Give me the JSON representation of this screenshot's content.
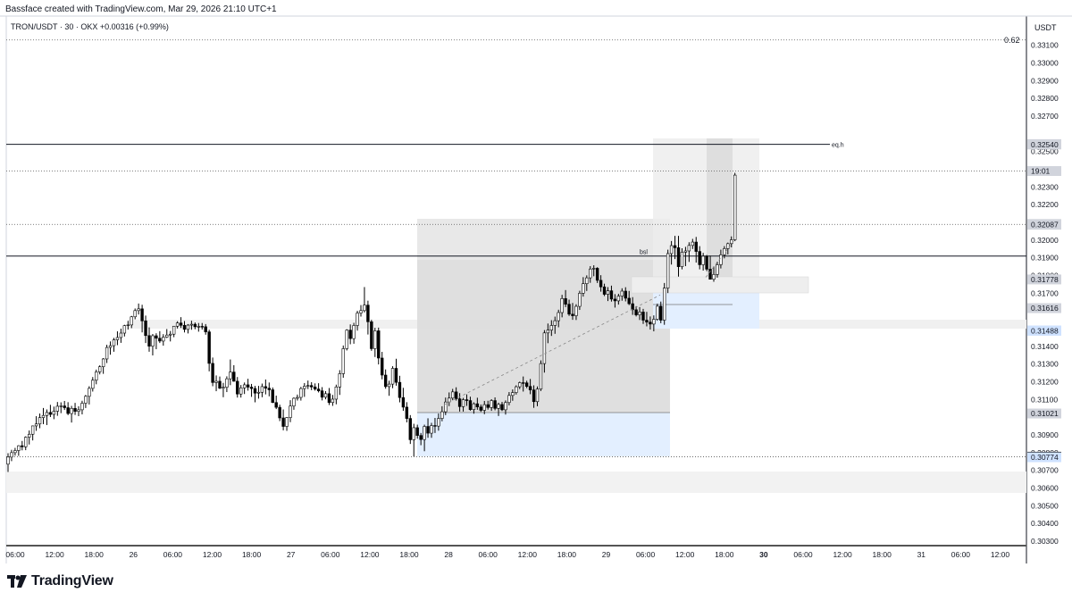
{
  "header": "Bassface created with TradingView.com, Mar 29, 2026 21:10 UTC+1",
  "symbol_line": "TRON/USDT · 30 · OKX  +0.00316 (+0.99%)",
  "currency": "USDT",
  "brand": "TradingView",
  "colors": {
    "up_body": "#ffffff",
    "down_body": "#000000",
    "wick": "#000000",
    "zone_gray": "#e6e6e6",
    "zone_blue": "#e3efff",
    "label_gray": "#d1d4dc",
    "label_black": "#000000",
    "label_blue": "#cfe2ff"
  },
  "chart_data": {
    "type": "candlestick",
    "ylim": [
      0.30275,
      0.33265
    ],
    "y_ticks": [
      "0.33100",
      "0.33000",
      "0.32900",
      "0.32800",
      "0.32700",
      "0.32500",
      "0.32400",
      "0.32300",
      "0.32200",
      "0.32000",
      "0.31900",
      "0.31800",
      "0.31700",
      "0.31400",
      "0.31300",
      "0.31200",
      "0.31100",
      "0.30900",
      "0.30800",
      "0.30700",
      "0.30600",
      "0.30500",
      "0.30400",
      "0.30300"
    ],
    "x_ticks": [
      "06:00",
      "12:00",
      "18:00",
      "26",
      "06:00",
      "12:00",
      "18:00",
      "27",
      "06:00",
      "12:00",
      "18:00",
      "28",
      "06:00",
      "12:00",
      "18:00",
      "29",
      "06:00",
      "12:00",
      "18:00",
      "30",
      "06:00",
      "12:00",
      "18:00",
      "31",
      "06:00",
      "12:00"
    ],
    "x_bold_ticks": [
      "30"
    ],
    "price_labels": [
      {
        "value": 0.32542,
        "text": "0.32542",
        "style": "gray"
      },
      {
        "value": 0.3254,
        "text": "0.32540",
        "style": "gray"
      },
      {
        "value": 0.3239,
        "text": "19:01",
        "style": "gray"
      },
      {
        "value": 0.32091,
        "text": "0.32091",
        "style": "gray"
      },
      {
        "value": 0.32087,
        "text": "0.32087",
        "style": "gray"
      },
      {
        "value": 0.31778,
        "text": "0.31778",
        "style": "gray"
      },
      {
        "value": 0.31616,
        "text": "0.31616",
        "style": "gray"
      },
      {
        "value": 0.3149,
        "text": "0.31490",
        "style": "blue"
      },
      {
        "value": 0.31488,
        "text": "0.31488",
        "style": "blue"
      },
      {
        "value": 0.31021,
        "text": "0.31021",
        "style": "gray"
      },
      {
        "value": 0.30777,
        "text": "0.30777",
        "style": "black"
      },
      {
        "value": 0.30774,
        "text": "0.30774",
        "style": "blue"
      }
    ],
    "fib_label": "0.62",
    "line_labels": [
      "eq.h",
      "bsl"
    ],
    "candles": [
      [
        0.30735,
        0.30797,
        0.30691,
        0.30775
      ],
      [
        0.30775,
        0.30816,
        0.30752,
        0.308
      ],
      [
        0.308,
        0.30827,
        0.30783,
        0.30812
      ],
      [
        0.30812,
        0.30842,
        0.30782,
        0.30839
      ],
      [
        0.30839,
        0.30866,
        0.30813,
        0.30833
      ],
      [
        0.30833,
        0.30892,
        0.30814,
        0.30887
      ],
      [
        0.30887,
        0.30925,
        0.30846,
        0.30904
      ],
      [
        0.30904,
        0.30953,
        0.30869,
        0.30951
      ],
      [
        0.30951,
        0.31006,
        0.30923,
        0.30962
      ],
      [
        0.30962,
        0.31021,
        0.30938,
        0.30998
      ],
      [
        0.30998,
        0.31052,
        0.30961,
        0.3101
      ],
      [
        0.3101,
        0.31044,
        0.30956,
        0.31027
      ],
      [
        0.31027,
        0.3107,
        0.31001,
        0.31016
      ],
      [
        0.31016,
        0.3106,
        0.30989,
        0.31034
      ],
      [
        0.31034,
        0.31086,
        0.31008,
        0.31062
      ],
      [
        0.31062,
        0.31084,
        0.31023,
        0.31064
      ],
      [
        0.31064,
        0.31092,
        0.31041,
        0.31054
      ],
      [
        0.31054,
        0.31085,
        0.31012,
        0.31021
      ],
      [
        0.31021,
        0.31064,
        0.3097,
        0.3105
      ],
      [
        0.3105,
        0.31081,
        0.31013,
        0.31033
      ],
      [
        0.31033,
        0.31062,
        0.31006,
        0.31042
      ],
      [
        0.31042,
        0.31093,
        0.31016,
        0.31079
      ],
      [
        0.31079,
        0.31126,
        0.31052,
        0.31118
      ],
      [
        0.31118,
        0.31175,
        0.31072,
        0.31163
      ],
      [
        0.31163,
        0.31227,
        0.31145,
        0.31209
      ],
      [
        0.31209,
        0.31269,
        0.31186,
        0.31256
      ],
      [
        0.31256,
        0.31293,
        0.31242,
        0.31285
      ],
      [
        0.31285,
        0.31334,
        0.31245,
        0.31329
      ],
      [
        0.31329,
        0.31409,
        0.31306,
        0.31394
      ],
      [
        0.31394,
        0.31428,
        0.31353,
        0.31404
      ],
      [
        0.31404,
        0.31448,
        0.3137,
        0.31437
      ],
      [
        0.31437,
        0.31485,
        0.31407,
        0.3145
      ],
      [
        0.3145,
        0.315,
        0.3142,
        0.31475
      ],
      [
        0.31475,
        0.31522,
        0.31456,
        0.31517
      ],
      [
        0.31517,
        0.31544,
        0.31495,
        0.31521
      ],
      [
        0.31521,
        0.31572,
        0.31503,
        0.31567
      ],
      [
        0.31567,
        0.31614,
        0.31553,
        0.31602
      ],
      [
        0.31602,
        0.31642,
        0.3158,
        0.31612
      ],
      [
        0.31612,
        0.31635,
        0.31479,
        0.31544
      ],
      [
        0.31544,
        0.31574,
        0.31419,
        0.31461
      ],
      [
        0.31461,
        0.31507,
        0.3137,
        0.31401
      ],
      [
        0.31401,
        0.3147,
        0.31349,
        0.3146
      ],
      [
        0.3146,
        0.31474,
        0.31384,
        0.31446
      ],
      [
        0.31446,
        0.31486,
        0.31419,
        0.3143
      ],
      [
        0.3143,
        0.31469,
        0.31404,
        0.31452
      ],
      [
        0.31452,
        0.31498,
        0.31447,
        0.31464
      ],
      [
        0.31464,
        0.31487,
        0.31428,
        0.31469
      ],
      [
        0.31469,
        0.31515,
        0.31452,
        0.31514
      ],
      [
        0.31514,
        0.31542,
        0.31501,
        0.31532
      ],
      [
        0.31532,
        0.31565,
        0.31504,
        0.31519
      ],
      [
        0.31519,
        0.31543,
        0.31479,
        0.31496
      ],
      [
        0.31496,
        0.31526,
        0.31473,
        0.3152
      ],
      [
        0.3152,
        0.31545,
        0.31494,
        0.31525
      ],
      [
        0.31525,
        0.31535,
        0.31497,
        0.31511
      ],
      [
        0.31511,
        0.31532,
        0.31483,
        0.31513
      ],
      [
        0.31513,
        0.31532,
        0.31495,
        0.31511
      ],
      [
        0.31511,
        0.31526,
        0.31466,
        0.31482
      ],
      [
        0.31482,
        0.31494,
        0.31259,
        0.31304
      ],
      [
        0.31304,
        0.31337,
        0.31175,
        0.31196
      ],
      [
        0.31196,
        0.31236,
        0.31147,
        0.31203
      ],
      [
        0.31203,
        0.3123,
        0.31159,
        0.31164
      ],
      [
        0.31164,
        0.31194,
        0.31113,
        0.31169
      ],
      [
        0.31169,
        0.31231,
        0.31142,
        0.31217
      ],
      [
        0.31217,
        0.31326,
        0.31181,
        0.31255
      ],
      [
        0.31255,
        0.31294,
        0.31201,
        0.31203
      ],
      [
        0.31203,
        0.31227,
        0.31111,
        0.31131
      ],
      [
        0.31131,
        0.31182,
        0.31111,
        0.31166
      ],
      [
        0.31166,
        0.31196,
        0.31131,
        0.31183
      ],
      [
        0.31183,
        0.31217,
        0.3115,
        0.3117
      ],
      [
        0.3117,
        0.31188,
        0.31115,
        0.31162
      ],
      [
        0.31162,
        0.31177,
        0.31084,
        0.31136
      ],
      [
        0.31136,
        0.31177,
        0.31105,
        0.31141
      ],
      [
        0.31141,
        0.3119,
        0.31113,
        0.31173
      ],
      [
        0.31173,
        0.31213,
        0.31129,
        0.31164
      ],
      [
        0.31164,
        0.31196,
        0.31118,
        0.31155
      ],
      [
        0.31155,
        0.31168,
        0.3108,
        0.31083
      ],
      [
        0.31083,
        0.31122,
        0.31046,
        0.31056
      ],
      [
        0.31056,
        0.31071,
        0.30978,
        0.30996
      ],
      [
        0.30996,
        0.31044,
        0.30926,
        0.30948
      ],
      [
        0.30948,
        0.31001,
        0.30923,
        0.30998
      ],
      [
        0.30998,
        0.31096,
        0.30972,
        0.31063
      ],
      [
        0.31063,
        0.31112,
        0.31042,
        0.31107
      ],
      [
        0.31107,
        0.31128,
        0.31094,
        0.31112
      ],
      [
        0.31112,
        0.31171,
        0.31094,
        0.31162
      ],
      [
        0.31162,
        0.31193,
        0.31115,
        0.31175
      ],
      [
        0.31175,
        0.31207,
        0.31159,
        0.31179
      ],
      [
        0.31179,
        0.31198,
        0.31153,
        0.31171
      ],
      [
        0.31171,
        0.31191,
        0.3115,
        0.31159
      ],
      [
        0.31159,
        0.31192,
        0.3114,
        0.31149
      ],
      [
        0.31149,
        0.3117,
        0.31095,
        0.31113
      ],
      [
        0.31113,
        0.31147,
        0.31101,
        0.31133
      ],
      [
        0.31133,
        0.31165,
        0.31069,
        0.31083
      ],
      [
        0.31083,
        0.31126,
        0.31064,
        0.31102
      ],
      [
        0.31102,
        0.31184,
        0.31073,
        0.31171
      ],
      [
        0.31171,
        0.31266,
        0.31126,
        0.31246
      ],
      [
        0.31246,
        0.31405,
        0.31223,
        0.31387
      ],
      [
        0.31387,
        0.31497,
        0.31377,
        0.31492
      ],
      [
        0.31492,
        0.31524,
        0.31412,
        0.31444
      ],
      [
        0.31444,
        0.31533,
        0.31415,
        0.31518
      ],
      [
        0.31518,
        0.31601,
        0.31489,
        0.31588
      ],
      [
        0.31588,
        0.31633,
        0.31568,
        0.31602
      ],
      [
        0.31602,
        0.31735,
        0.31592,
        0.31633
      ],
      [
        0.31633,
        0.31658,
        0.31467,
        0.31539
      ],
      [
        0.31539,
        0.3155,
        0.31375,
        0.31387
      ],
      [
        0.31387,
        0.31505,
        0.3134,
        0.31488
      ],
      [
        0.31488,
        0.31506,
        0.31298,
        0.31334
      ],
      [
        0.31334,
        0.31369,
        0.31214,
        0.31238
      ],
      [
        0.31238,
        0.3127,
        0.31161,
        0.31173
      ],
      [
        0.31173,
        0.31206,
        0.31121,
        0.31187
      ],
      [
        0.31187,
        0.31288,
        0.31164,
        0.31276
      ],
      [
        0.31276,
        0.3133,
        0.31178,
        0.31197
      ],
      [
        0.31197,
        0.31234,
        0.31084,
        0.31111
      ],
      [
        0.31111,
        0.31166,
        0.31036,
        0.31057
      ],
      [
        0.31057,
        0.31085,
        0.30971,
        0.30993
      ],
      [
        0.30993,
        0.31012,
        0.30849,
        0.30873
      ],
      [
        0.30873,
        0.30963,
        0.30779,
        0.30941
      ],
      [
        0.30941,
        0.30958,
        0.30879,
        0.30897
      ],
      [
        0.30897,
        0.30911,
        0.30842,
        0.30874
      ],
      [
        0.30874,
        0.30958,
        0.30808,
        0.30948
      ],
      [
        0.30948,
        0.30994,
        0.30884,
        0.3091
      ],
      [
        0.3091,
        0.30968,
        0.30884,
        0.30953
      ],
      [
        0.30953,
        0.30996,
        0.30911,
        0.3095
      ],
      [
        0.3095,
        0.31021,
        0.30924,
        0.30993
      ],
      [
        0.30993,
        0.31062,
        0.30977,
        0.31031
      ],
      [
        0.31031,
        0.31111,
        0.31012,
        0.31086
      ],
      [
        0.31086,
        0.3114,
        0.31063,
        0.31108
      ],
      [
        0.31108,
        0.3116,
        0.31096,
        0.31143
      ],
      [
        0.31143,
        0.31169,
        0.31094,
        0.31104
      ],
      [
        0.31104,
        0.31136,
        0.31032,
        0.3106
      ],
      [
        0.3106,
        0.31109,
        0.31032,
        0.31099
      ],
      [
        0.31099,
        0.31129,
        0.31064,
        0.31094
      ],
      [
        0.31094,
        0.31116,
        0.31037,
        0.31043
      ],
      [
        0.31043,
        0.31084,
        0.3102,
        0.31076
      ],
      [
        0.31076,
        0.3111,
        0.31042,
        0.31058
      ],
      [
        0.31058,
        0.31072,
        0.3103,
        0.31039
      ],
      [
        0.31039,
        0.31092,
        0.31017,
        0.31071
      ],
      [
        0.31071,
        0.31093,
        0.31043,
        0.31055
      ],
      [
        0.31055,
        0.31102,
        0.31036,
        0.31094
      ],
      [
        0.31094,
        0.31112,
        0.31039,
        0.3105
      ],
      [
        0.3105,
        0.31082,
        0.31007,
        0.31072
      ],
      [
        0.31072,
        0.31087,
        0.31035,
        0.31042
      ],
      [
        0.31042,
        0.31095,
        0.31015,
        0.31083
      ],
      [
        0.31083,
        0.31142,
        0.31067,
        0.31123
      ],
      [
        0.31123,
        0.31157,
        0.31093,
        0.31139
      ],
      [
        0.31139,
        0.3118,
        0.31128,
        0.31172
      ],
      [
        0.31172,
        0.31201,
        0.31159,
        0.31195
      ],
      [
        0.31195,
        0.3123,
        0.31145,
        0.31194
      ],
      [
        0.31194,
        0.31206,
        0.31164,
        0.31174
      ],
      [
        0.31174,
        0.31216,
        0.3113,
        0.31154
      ],
      [
        0.31154,
        0.3118,
        0.31053,
        0.31088
      ],
      [
        0.31088,
        0.31174,
        0.31062,
        0.31159
      ],
      [
        0.31159,
        0.31321,
        0.31148,
        0.31303
      ],
      [
        0.31303,
        0.31492,
        0.31252,
        0.31476
      ],
      [
        0.31476,
        0.31529,
        0.31418,
        0.31492
      ],
      [
        0.31492,
        0.31548,
        0.31459,
        0.31518
      ],
      [
        0.31518,
        0.31568,
        0.31471,
        0.31545
      ],
      [
        0.31545,
        0.31607,
        0.31508,
        0.31591
      ],
      [
        0.31591,
        0.31691,
        0.31564,
        0.3167
      ],
      [
        0.3167,
        0.31718,
        0.31622,
        0.31638
      ],
      [
        0.31638,
        0.31664,
        0.31572,
        0.31582
      ],
      [
        0.31582,
        0.31645,
        0.3155,
        0.31573
      ],
      [
        0.31573,
        0.31638,
        0.31549,
        0.31626
      ],
      [
        0.31626,
        0.31714,
        0.31606,
        0.317
      ],
      [
        0.317,
        0.31791,
        0.31681,
        0.31754
      ],
      [
        0.31754,
        0.31801,
        0.31713,
        0.31787
      ],
      [
        0.31787,
        0.31853,
        0.31759,
        0.31837
      ],
      [
        0.31837,
        0.31858,
        0.31796,
        0.31841
      ],
      [
        0.31841,
        0.31847,
        0.31758,
        0.31773
      ],
      [
        0.31773,
        0.31802,
        0.31709,
        0.31736
      ],
      [
        0.31736,
        0.31754,
        0.31684,
        0.31694
      ],
      [
        0.31694,
        0.31735,
        0.31656,
        0.31714
      ],
      [
        0.31714,
        0.31743,
        0.31653,
        0.31667
      ],
      [
        0.31667,
        0.31695,
        0.31619,
        0.31657
      ],
      [
        0.31657,
        0.31697,
        0.31636,
        0.31684
      ],
      [
        0.31684,
        0.31728,
        0.31658,
        0.31712
      ],
      [
        0.31712,
        0.31734,
        0.31654,
        0.31672
      ],
      [
        0.31672,
        0.31713,
        0.31633,
        0.31641
      ],
      [
        0.31641,
        0.31678,
        0.31578,
        0.31607
      ],
      [
        0.31607,
        0.31627,
        0.31569,
        0.31578
      ],
      [
        0.31578,
        0.31622,
        0.31549,
        0.31594
      ],
      [
        0.31594,
        0.31612,
        0.31527,
        0.31548
      ],
      [
        0.31548,
        0.31595,
        0.31513,
        0.31537
      ],
      [
        0.31537,
        0.31569,
        0.31495,
        0.31526
      ],
      [
        0.31526,
        0.31575,
        0.31485,
        0.31553
      ],
      [
        0.31553,
        0.31641,
        0.31545,
        0.31627
      ],
      [
        0.31627,
        0.31653,
        0.31531,
        0.31548
      ],
      [
        0.31548,
        0.31758,
        0.31522,
        0.31729
      ],
      [
        0.31729,
        0.31946,
        0.31701,
        0.31924
      ],
      [
        0.31924,
        0.31995,
        0.31862,
        0.31969
      ],
      [
        0.31969,
        0.32024,
        0.31893,
        0.31957
      ],
      [
        0.31957,
        0.32024,
        0.31794,
        0.3185
      ],
      [
        0.3185,
        0.31954,
        0.31835,
        0.31932
      ],
      [
        0.31932,
        0.31962,
        0.31853,
        0.31939
      ],
      [
        0.31939,
        0.31988,
        0.31877,
        0.3197
      ],
      [
        0.3197,
        0.32007,
        0.3195,
        0.31989
      ],
      [
        0.31989,
        0.32018,
        0.31873,
        0.31936
      ],
      [
        0.31936,
        0.31966,
        0.31835,
        0.31861
      ],
      [
        0.31861,
        0.31928,
        0.31828,
        0.31909
      ],
      [
        0.31909,
        0.31916,
        0.31825,
        0.31836
      ],
      [
        0.31836,
        0.31912,
        0.31778,
        0.31779
      ],
      [
        0.31779,
        0.31852,
        0.31765,
        0.31806
      ],
      [
        0.31806,
        0.31878,
        0.31788,
        0.31861
      ],
      [
        0.31861,
        0.31946,
        0.3184,
        0.31917
      ],
      [
        0.31917,
        0.31966,
        0.31897,
        0.31952
      ],
      [
        0.31952,
        0.31986,
        0.31919,
        0.3198
      ],
      [
        0.3198,
        0.32021,
        0.31959,
        0.32002
      ],
      [
        0.32002,
        0.3238,
        0.31994,
        0.32367
      ]
    ]
  }
}
